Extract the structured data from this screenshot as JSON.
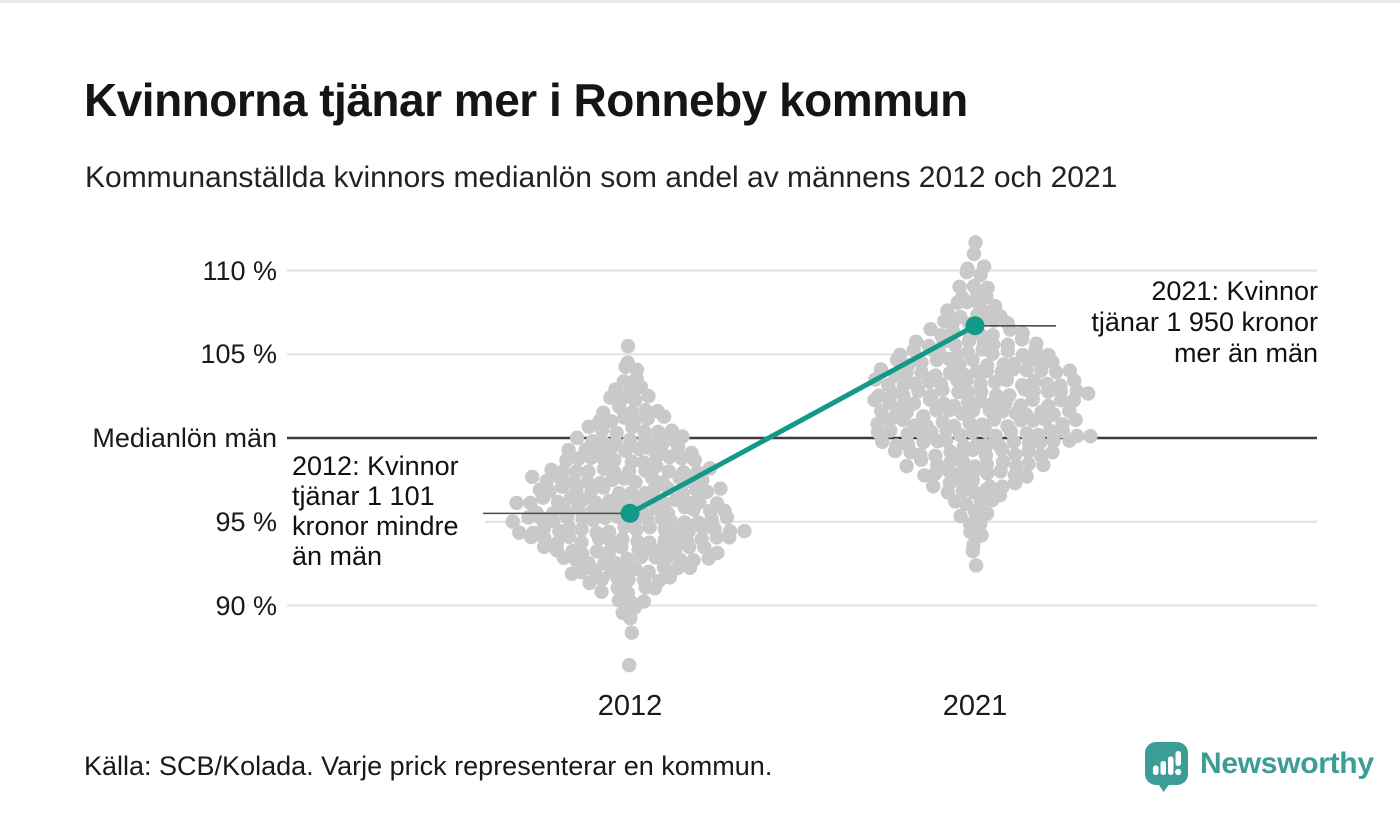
{
  "header": {
    "title": "Kvinnorna tjänar mer i Ronneby kommun",
    "subtitle": "Kommunanställda kvinnors medianlön som andel av männens 2012 och 2021"
  },
  "footer": {
    "source": "Källa: SCB/Kolada. Varje prick representerar en kommun.",
    "brand": "Newsworthy"
  },
  "logo": {
    "name": "Newsworthy",
    "color": "#3C9D96"
  },
  "chart_data": {
    "type": "beeswarm",
    "title": "Kvinnorna tjänar mer i Ronneby kommun",
    "subtitle": "Kommunanställda kvinnors medianlön som andel av männens 2012 och 2021",
    "x_categories": [
      "2012",
      "2021"
    ],
    "y_axis": {
      "unit": "%",
      "range": [
        86,
        112
      ],
      "grid": true,
      "ticks": [
        {
          "value": 110,
          "label": "110 %"
        },
        {
          "value": 105,
          "label": "105 %"
        },
        {
          "value": 100,
          "label": "Medianlön män"
        },
        {
          "value": 95,
          "label": "95 %"
        },
        {
          "value": 90,
          "label": "90 %"
        }
      ]
    },
    "highlight": {
      "name": "Ronneby kommun",
      "color": "#12998a",
      "points": [
        {
          "x": "2012",
          "value": 95.5
        },
        {
          "x": "2021",
          "value": 106.7
        }
      ]
    },
    "annotations": [
      {
        "x": "2012",
        "align": "left",
        "text": "2012: Kvinnor\ntjänar 1 101\nkronor mindre\nän män"
      },
      {
        "x": "2021",
        "align": "right",
        "text": "2021: Kvinnor\ntjänar 1 950 kronor\nmer än män"
      }
    ],
    "series": [
      {
        "x": "2012",
        "note": "each dot = one municipality, [percent_of_men_median, count, x_offset]",
        "distribution": [
          [
            105.3,
            1
          ],
          [
            104.7,
            1
          ],
          [
            104.1,
            2
          ],
          [
            103.5,
            2
          ],
          [
            102.9,
            3
          ],
          [
            102.3,
            4
          ],
          [
            101.7,
            5
          ],
          [
            101.1,
            6
          ],
          [
            100.5,
            7
          ],
          [
            99.9,
            9
          ],
          [
            99.3,
            10
          ],
          [
            98.7,
            11
          ],
          [
            98.1,
            13
          ],
          [
            97.5,
            14,
            -12
          ],
          [
            96.9,
            15
          ],
          [
            96.3,
            16,
            -14
          ],
          [
            95.7,
            15
          ],
          [
            95.1,
            17,
            -10
          ],
          [
            94.5,
            18
          ],
          [
            93.9,
            16
          ],
          [
            93.3,
            14
          ],
          [
            92.7,
            12,
            6
          ],
          [
            92.1,
            10
          ],
          [
            91.5,
            7
          ],
          [
            90.9,
            5
          ],
          [
            90.3,
            3
          ],
          [
            89.7,
            2
          ],
          [
            89.1,
            1
          ],
          [
            88.5,
            1
          ],
          [
            86.3,
            1
          ]
        ]
      },
      {
        "x": "2021",
        "note": "each dot = one municipality, [percent_of_men_median, count, x_offset]",
        "distribution": [
          [
            111.5,
            1
          ],
          [
            110.9,
            1
          ],
          [
            110.3,
            2
          ],
          [
            109.7,
            2
          ],
          [
            109.1,
            3
          ],
          [
            108.5,
            3
          ],
          [
            108.0,
            4
          ],
          [
            107.4,
            5
          ],
          [
            106.9,
            6
          ],
          [
            106.3,
            8
          ],
          [
            105.7,
            10
          ],
          [
            105.1,
            12
          ],
          [
            104.5,
            13
          ],
          [
            103.9,
            15
          ],
          [
            103.3,
            16
          ],
          [
            102.7,
            17,
            8
          ],
          [
            102.1,
            16
          ],
          [
            101.5,
            15
          ],
          [
            100.9,
            16
          ],
          [
            100.3,
            17,
            10
          ],
          [
            99.7,
            15
          ],
          [
            99.1,
            13
          ],
          [
            98.5,
            11
          ],
          [
            97.9,
            9
          ],
          [
            97.3,
            7
          ],
          [
            96.7,
            5
          ],
          [
            96.1,
            4
          ],
          [
            95.5,
            3
          ],
          [
            94.9,
            2
          ],
          [
            94.3,
            2
          ],
          [
            93.7,
            1
          ],
          [
            93.1,
            1
          ],
          [
            92.5,
            1
          ]
        ]
      }
    ],
    "dot_color": "#c9c9c9",
    "gridline_color": "#e4e4e4",
    "baseline_color": "#3d3d3d",
    "marker_line_color": "#4d4d4d",
    "source": "Källa: SCB/Kolada. Varje prick representerar en kommun."
  }
}
